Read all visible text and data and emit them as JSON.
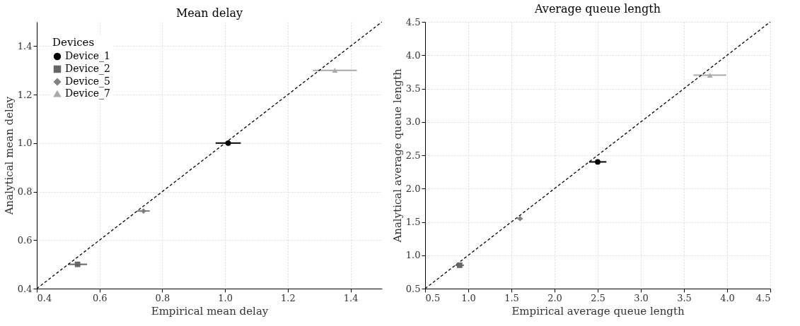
{
  "chart_data": [
    {
      "type": "scatter",
      "title": "Mean delay",
      "xlabel": "Empirical mean delay",
      "ylabel": "Analytical mean delay",
      "legend_title": "Devices",
      "legend": "top left",
      "grid": true,
      "xlim": [
        0.4,
        1.5
      ],
      "ylim": [
        0.4,
        1.5
      ],
      "xticks": [
        0.4,
        0.6,
        0.8,
        {
          "value": 1,
          "label": "1.0"
        },
        1.2,
        1.4
      ],
      "yticks": [
        0.4,
        0.6,
        0.8,
        {
          "value": 1,
          "label": "1.0"
        },
        1.2,
        1.4
      ],
      "series": [
        {
          "name": "Device_1",
          "color": "#000000",
          "marker": "circle",
          "x": [
            1.01
          ],
          "values": [
            1.0
          ],
          "xerrors": [
            0.04
          ]
        },
        {
          "name": "Device_2",
          "color": "#666666",
          "marker": "square",
          "x": [
            0.53
          ],
          "values": [
            0.5
          ],
          "xerrors": [
            0.03
          ]
        },
        {
          "name": "Device_5",
          "color": "#808080",
          "marker": "diamond",
          "x": [
            0.74
          ],
          "values": [
            0.72
          ],
          "xerrors": [
            0.02
          ]
        },
        {
          "name": "Device_7",
          "color": "#aaaaaa",
          "marker": "triangle",
          "x": [
            1.35
          ],
          "values": [
            1.3
          ],
          "xerrors": [
            0.07
          ]
        },
        {
          "type": "line",
          "color": "#000000",
          "line_style": "dashed",
          "marker": "none",
          "x": [
            0.4,
            1.5
          ],
          "values": [
            0.4,
            1.5
          ]
        }
      ]
    },
    {
      "type": "scatter",
      "title": "Average queue length",
      "xlabel": "Empirical average queue length",
      "ylabel": "Analytical average queue length",
      "grid": true,
      "xlim": [
        0.5,
        4.5
      ],
      "ylim": [
        0.5,
        4.5
      ],
      "xticks": [
        0.5,
        {
          "value": 1,
          "label": "1.0"
        },
        1.5,
        {
          "value": 2,
          "label": "2.0"
        },
        2.5,
        {
          "value": 3,
          "label": "3.0"
        },
        3.5,
        {
          "value": 4,
          "label": "4.0"
        },
        4.5
      ],
      "yticks": [
        0.5,
        {
          "value": 1,
          "label": "1.0"
        },
        1.5,
        {
          "value": 2,
          "label": "2.0"
        },
        2.5,
        {
          "value": 3,
          "label": "3.0"
        },
        3.5,
        {
          "value": 4,
          "label": "4.0"
        },
        4.5
      ],
      "series": [
        {
          "color": "#000000",
          "marker": "circle",
          "x": [
            2.5
          ],
          "values": [
            2.4
          ],
          "xerrors": [
            0.1
          ]
        },
        {
          "color": "#666666",
          "marker": "square",
          "x": [
            0.9
          ],
          "values": [
            0.85
          ],
          "xerrors": [
            0.05
          ]
        },
        {
          "color": "#808080",
          "marker": "diamond",
          "x": [
            1.6
          ],
          "values": [
            1.55
          ],
          "xerrors": [
            0.03
          ]
        },
        {
          "color": "#aaaaaa",
          "marker": "triangle",
          "x": [
            3.8
          ],
          "values": [
            3.7
          ],
          "xerrors": [
            0.19
          ]
        },
        {
          "type": "line",
          "color": "#000000",
          "line_style": "dashed",
          "marker": "none",
          "x": [
            0.5,
            4.5
          ],
          "values": [
            0.5,
            4.5
          ]
        }
      ]
    }
  ]
}
